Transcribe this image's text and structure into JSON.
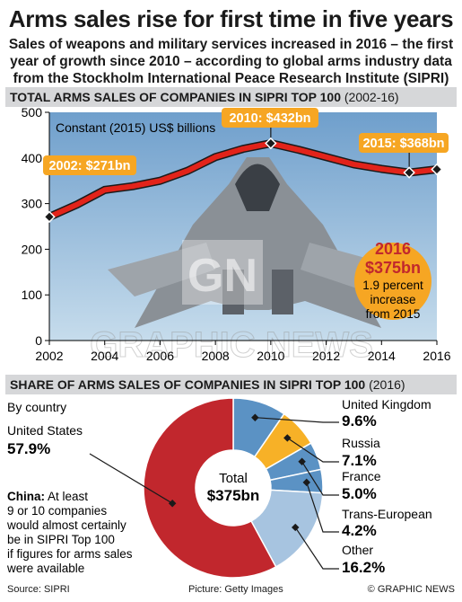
{
  "header": {
    "title": "Arms sales rise for first time in five years",
    "subtitle": "Sales of weapons and military services increased in 2016 – the first year of growth since 2010 – according to global arms industry data from the Stockholm International Peace Research Institute (SIPRI)"
  },
  "colors": {
    "line_red": "#e2231a",
    "callout_orange": "#f6a623",
    "band_grey": "#d6d7d9",
    "sky_blue": "#8fb6d6",
    "pie_us": "#c1272d",
    "pie_uk": "#5b92c4",
    "pie_russia": "#f7b127",
    "pie_france": "#5b92c4",
    "pie_trans": "#5b92c4",
    "pie_other": "#a7c4e0"
  },
  "line_section": {
    "heading": "TOTAL ARMS SALES OF COMPANIES IN SIPRI TOP 100",
    "heading_note": "(2002-16)",
    "unit_label": "Constant (2015) US$ billions",
    "callouts": [
      {
        "text": "2002: $271bn",
        "year": 2002,
        "value": 271
      },
      {
        "text": "2010: $432bn",
        "year": 2010,
        "value": 432
      },
      {
        "text": "2015: $368bn",
        "year": 2015,
        "value": 368
      }
    ],
    "highlight": {
      "year": "2016",
      "value": "$375bn",
      "line1": "1.9 percent",
      "line2": "increase",
      "line3": "from 2015"
    },
    "watermark": {
      "logo": "GN",
      "text": "GRAPHIC NEWS"
    }
  },
  "pie_section": {
    "heading": "SHARE OF ARMS SALES OF COMPANIES IN SIPRI TOP 100",
    "heading_note": "(2016)",
    "by_country": "By country",
    "center_label": "Total",
    "center_value": "$375bn",
    "china_note": {
      "bold": "China:",
      "line1": " At least",
      "line2": "9 or 10 companies",
      "line3": "would almost certainly",
      "line4": "be in SIPRI Top 100",
      "line5": "if figures for arms sales",
      "line6": "were available"
    }
  },
  "chart_data": [
    {
      "type": "line",
      "title": "TOTAL ARMS SALES OF COMPANIES IN SIPRI TOP 100 (2002-16)",
      "ylabel": "Constant (2015) US$ billions",
      "xlabel": "",
      "x": [
        2002,
        2003,
        2004,
        2005,
        2006,
        2007,
        2008,
        2009,
        2010,
        2011,
        2012,
        2013,
        2014,
        2015,
        2016
      ],
      "series": [
        {
          "values": [
            271,
            298,
            330,
            338,
            350,
            372,
            402,
            420,
            432,
            418,
            402,
            386,
            376,
            368,
            375
          ]
        }
      ],
      "xlim": [
        2002,
        2016
      ],
      "ylim": [
        0,
        500
      ],
      "yticks": [
        0,
        100,
        200,
        300,
        400,
        500
      ],
      "xticks": [
        2002,
        2004,
        2006,
        2008,
        2010,
        2012,
        2014,
        2016
      ],
      "grid": false
    },
    {
      "type": "pie",
      "title": "SHARE OF ARMS SALES OF COMPANIES IN SIPRI TOP 100 (2016)",
      "slices": [
        {
          "label": "United States",
          "value": 57.9,
          "display": "57.9%",
          "color": "#c1272d"
        },
        {
          "label": "United Kingdom",
          "value": 9.6,
          "display": "9.6%",
          "color": "#5b92c4"
        },
        {
          "label": "Russia",
          "value": 7.1,
          "display": "7.1%",
          "color": "#f7b127"
        },
        {
          "label": "France",
          "value": 5.0,
          "display": "5.0%",
          "color": "#5b92c4"
        },
        {
          "label": "Trans-European",
          "value": 4.2,
          "display": "4.2%",
          "color": "#5b92c4"
        },
        {
          "label": "Other",
          "value": 16.2,
          "display": "16.2%",
          "color": "#a7c4e0"
        }
      ],
      "legend": "outside labels"
    }
  ],
  "footer": {
    "source": "Source: SIPRI",
    "picture": "Picture: Getty Images",
    "credit": "© GRAPHIC NEWS"
  }
}
